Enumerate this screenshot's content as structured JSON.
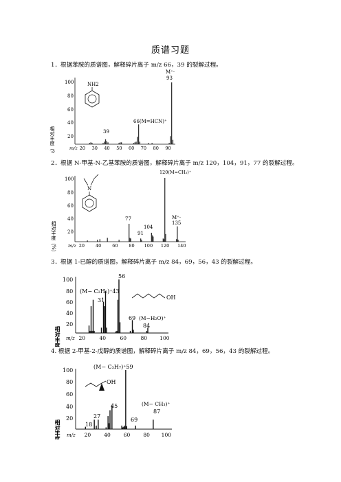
{
  "title": "质谱习题",
  "questions": [
    {
      "text": "1．根据苯胺的质谱图，解释碎片离子 m/z 66，39 的裂解过程。"
    },
    {
      "text": "2．根据 N-甲基-N-乙基苯胺的质谱图，解释碎片离子 m/z 120，104，91，77 的裂解过程。"
    },
    {
      "text": "3．根据 1-已醇的质谱图，解释碎片离子 m/z 84，69，56，43 的裂解过程。"
    },
    {
      "text": "4. 根据 2-甲基-2-戊醇的质谱图，解释碎片离子 m/z 84，69，56，43 的裂解过程。"
    }
  ],
  "chart_data": [
    {
      "type": "bar",
      "ylabel": "相对丰度（%）",
      "xlabel": "m/z",
      "xticks": [
        "20",
        "30",
        "40",
        "50",
        "60",
        "70",
        "80",
        "90"
      ],
      "yticks": [
        "20",
        "40",
        "60",
        "80",
        "100"
      ],
      "xlim": [
        14,
        96
      ],
      "ylim": [
        0,
        100
      ],
      "structure_label": "NH2",
      "annotations": {
        "m93": "M⁺·",
        "v93": "93",
        "m66": "66(M=HCN)⁺",
        "m39": "39"
      },
      "peaks": [
        [
          26,
          2
        ],
        [
          27,
          3
        ],
        [
          28,
          2
        ],
        [
          37,
          2
        ],
        [
          38,
          4
        ],
        [
          39,
          8
        ],
        [
          40,
          5
        ],
        [
          41,
          3
        ],
        [
          50,
          2
        ],
        [
          51,
          3
        ],
        [
          52,
          3
        ],
        [
          62,
          2
        ],
        [
          63,
          3
        ],
        [
          64,
          4
        ],
        [
          65,
          12
        ],
        [
          66,
          32
        ],
        [
          67,
          4
        ],
        [
          74,
          2
        ],
        [
          77,
          2
        ],
        [
          91,
          2
        ],
        [
          92,
          13
        ],
        [
          93,
          100
        ],
        [
          94,
          7
        ]
      ]
    },
    {
      "type": "bar",
      "ylabel": "相对丰度（%）",
      "xlabel": "m/z",
      "xticks": [
        "20",
        "40",
        "60",
        "80",
        "100",
        "120",
        "140"
      ],
      "yticks": [
        "20",
        "40",
        "60",
        "80",
        "100"
      ],
      "xlim": [
        12,
        145
      ],
      "ylim": [
        0,
        100
      ],
      "structure_label": "N",
      "annotations": {
        "m120": "120(M=CH₃)⁺",
        "m77": "77",
        "m91": "91",
        "m104": "104",
        "mM": "M⁺·",
        "m135": "135"
      },
      "peaks": [
        [
          27,
          2
        ],
        [
          39,
          3
        ],
        [
          42,
          4
        ],
        [
          51,
          6
        ],
        [
          65,
          3
        ],
        [
          77,
          28
        ],
        [
          78,
          6
        ],
        [
          79,
          5
        ],
        [
          91,
          5
        ],
        [
          92,
          3
        ],
        [
          104,
          14
        ],
        [
          105,
          10
        ],
        [
          106,
          8
        ],
        [
          118,
          5
        ],
        [
          119,
          4
        ],
        [
          120,
          100
        ],
        [
          121,
          12
        ],
        [
          134,
          4
        ],
        [
          135,
          24
        ],
        [
          136,
          3
        ]
      ]
    },
    {
      "type": "bar",
      "ylabel": "相对丰度(%)",
      "xlabel": "m/z",
      "xticks": [
        "20",
        "40",
        "60",
        "80",
        "100"
      ],
      "yticks": [
        "20",
        "40",
        "60",
        "80",
        "100"
      ],
      "xlim": [
        14,
        104
      ],
      "ylim": [
        0,
        100
      ],
      "structure_label": "OH",
      "annotations": {
        "m56": "56",
        "m43": "(M− C₂H₅)⁺43",
        "m31": "31",
        "m69": "69",
        "mH2O": "(M−H₂O)⁺",
        "m84": "84"
      },
      "peaks": [
        [
          27,
          14
        ],
        [
          28,
          4
        ],
        [
          29,
          50
        ],
        [
          30,
          4
        ],
        [
          31,
          62
        ],
        [
          32,
          4
        ],
        [
          39,
          10
        ],
        [
          41,
          58
        ],
        [
          42,
          50
        ],
        [
          43,
          78
        ],
        [
          44,
          10
        ],
        [
          53,
          3
        ],
        [
          54,
          4
        ],
        [
          55,
          62
        ],
        [
          56,
          100
        ],
        [
          57,
          20
        ],
        [
          67,
          4
        ],
        [
          69,
          24
        ],
        [
          70,
          6
        ],
        [
          83,
          4
        ],
        [
          84,
          10
        ]
      ]
    },
    {
      "type": "bar",
      "ylabel": "相对丰度(%)",
      "xlabel": "m/z",
      "xticks": [
        "20",
        "40",
        "60",
        "80",
        "100"
      ],
      "yticks": [
        "20",
        "40",
        "60",
        "80",
        "100"
      ],
      "xlim": [
        8,
        106
      ],
      "ylim": [
        0,
        100
      ],
      "structure_label": "OH",
      "annotations": {
        "m59": "(M− C₃H₇)⁺59",
        "m45": "45",
        "m27": "27",
        "m18": "18",
        "m69": "69",
        "mCH3": "(M− CH₃)⁺",
        "m87": "87"
      },
      "peaks": [
        [
          18,
          4
        ],
        [
          27,
          16
        ],
        [
          29,
          6
        ],
        [
          31,
          16
        ],
        [
          39,
          3
        ],
        [
          41,
          22
        ],
        [
          42,
          10
        ],
        [
          43,
          32
        ],
        [
          45,
          40
        ],
        [
          55,
          6
        ],
        [
          56,
          3
        ],
        [
          57,
          4
        ],
        [
          58,
          6
        ],
        [
          59,
          100
        ],
        [
          60,
          5
        ],
        [
          69,
          6
        ],
        [
          87,
          16
        ]
      ]
    }
  ]
}
